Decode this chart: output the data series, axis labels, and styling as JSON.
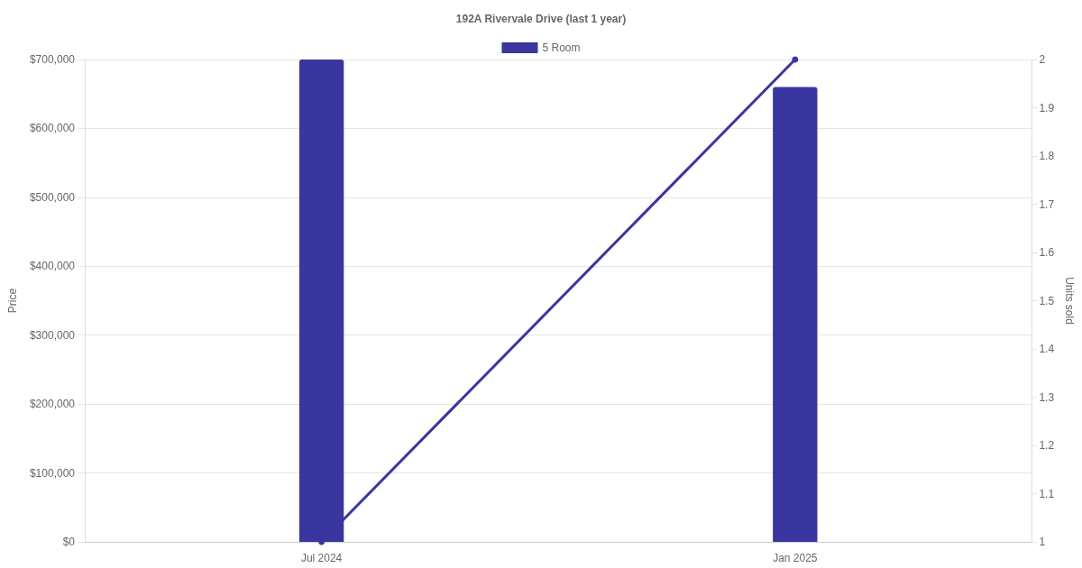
{
  "chart_data": {
    "type": "bar",
    "title": "192A Rivervale Drive (last 1 year)",
    "categories": [
      "Jul 2024",
      "Jan 2025"
    ],
    "series": [
      {
        "name": "5 Room",
        "color": "#3a36a0",
        "values": [
          700000,
          660000
        ]
      },
      {
        "type": "line",
        "axis": "y2",
        "color": "#3a36a0",
        "values": [
          1,
          2
        ]
      }
    ],
    "ylabel": "Price",
    "y2label": "Units sold",
    "ylim": [
      0,
      700000
    ],
    "yticks": [
      {
        "value": 0,
        "label": "$0"
      },
      {
        "value": 100000,
        "label": "$100,000"
      },
      {
        "value": 200000,
        "label": "$200,000"
      },
      {
        "value": 300000,
        "label": "$300,000"
      },
      {
        "value": 400000,
        "label": "$400,000"
      },
      {
        "value": 500000,
        "label": "$500,000"
      },
      {
        "value": 600000,
        "label": "$600,000"
      },
      {
        "value": 700000,
        "label": "$700,000"
      }
    ],
    "y2lim": [
      1,
      2
    ],
    "y2ticks": [
      1,
      1.1,
      1.2,
      1.3,
      1.4,
      1.5,
      1.6,
      1.7,
      1.8,
      1.9,
      2
    ],
    "grid": "y",
    "legend": "top",
    "marker": "circle",
    "line_style": "solid"
  }
}
